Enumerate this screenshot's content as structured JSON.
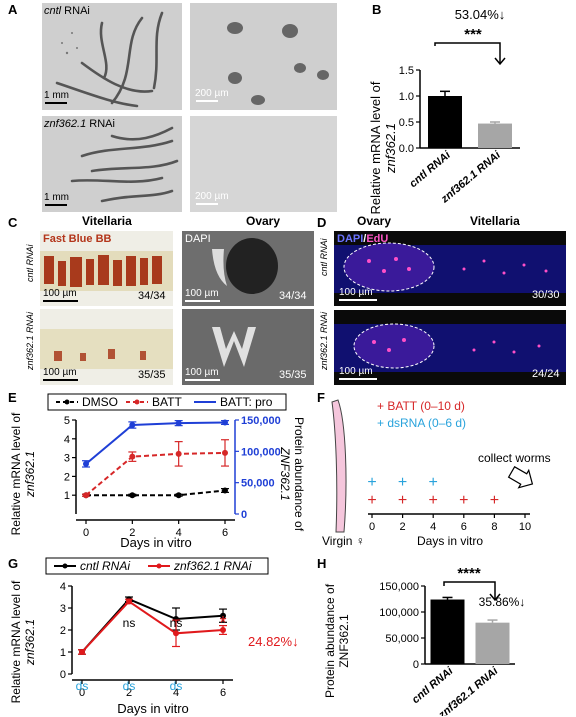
{
  "panels": {
    "A": {
      "label": "A",
      "row1_label": "cntl",
      "row1_suffix": " RNAi",
      "row2_label": "znf362.1",
      "row2_suffix": " RNAi",
      "scale_left": "1 mm",
      "scale_right": "200 µm"
    },
    "B": {
      "label": "B",
      "annotation": "53.04%↓",
      "stars": "***",
      "ylabel_line1": "Relative mRNA level of",
      "ylabel_line2": "znf362.1",
      "chart_data": {
        "type": "bar",
        "categories": [
          "cntl RNAi",
          "znf362.1 RNAi"
        ],
        "values": [
          1.0,
          0.47
        ],
        "errors": [
          0.09,
          0.03
        ],
        "colors": [
          "#000000",
          "#a6a6a6"
        ],
        "ylim": [
          0,
          1.5
        ],
        "yticks": [
          "0.0",
          "0.5",
          "1.0",
          "1.5"
        ]
      }
    },
    "C": {
      "label": "C",
      "col1": "Vitellaria",
      "col2": "Ovary",
      "stain1": "Fast Blue BB",
      "stain2": "DAPI",
      "row1": "cntl RNAi",
      "row2": "znf362.1 RNAi",
      "scale": "100 µm",
      "count_r1_c1": "34/34",
      "count_r1_c2": "34/34",
      "count_r2_c1": "35/35",
      "count_r2_c2": "35/35"
    },
    "D": {
      "label": "D",
      "col1": "Ovary",
      "col2": "Vitellaria",
      "stain_dapi": "DAPI",
      "stain_sep": "/",
      "stain_edu": "EdU",
      "row1": "cntl RNAi",
      "row2": "znf362.1 RNAi",
      "scale": "100 µm",
      "count_r1": "30/30",
      "count_r2": "24/24"
    },
    "E": {
      "label": "E",
      "legend": [
        "DMSO",
        "BATT",
        "BATT: pro"
      ],
      "xlabel": "Days in vitro",
      "ylabel_line1": "Relative mRNA level of",
      "ylabel_line2": "znf362.1",
      "y2label_line1": "Protein abundance of",
      "y2label_line2": "ZNF362.1",
      "chart_data": {
        "type": "line",
        "x": [
          0,
          2,
          4,
          6
        ],
        "xlim": [
          0,
          6
        ],
        "ylim": [
          0,
          5
        ],
        "y2lim": [
          0,
          150000
        ],
        "yticks": [
          "1",
          "2",
          "3",
          "4",
          "5"
        ],
        "y2ticks": [
          "0",
          "50,000",
          "100,000",
          "150,000"
        ],
        "series": [
          {
            "name": "DMSO",
            "axis": "left",
            "values": [
              1.0,
              1.0,
              1.0,
              1.25
            ],
            "errors": [
              0.05,
              0.05,
              0.05,
              0.1
            ],
            "color": "#000000",
            "dash": true
          },
          {
            "name": "BATT",
            "axis": "left",
            "values": [
              1.0,
              3.05,
              3.2,
              3.25
            ],
            "errors": [
              0.05,
              0.25,
              0.65,
              0.7
            ],
            "color": "#d62728",
            "dash": true
          },
          {
            "name": "BATT: pro",
            "axis": "right",
            "values": [
              80000,
              142000,
              145000,
              146000
            ],
            "errors": [
              5000,
              5000,
              4000,
              3000
            ],
            "color": "#1f3fd6",
            "dash": false
          }
        ]
      }
    },
    "F": {
      "label": "F",
      "batt": "+ BATT (0–10 d)",
      "dsrna": "+ dsRNA (0–6 d)",
      "collect": "collect worms",
      "virgin": "Virgin ♀",
      "xlabel": "Days in vitro",
      "ticks": [
        "0",
        "2",
        "4",
        "6",
        "8",
        "10"
      ],
      "plus": "+",
      "blue_days": [
        0,
        2,
        4
      ],
      "red_days": [
        0,
        2,
        4,
        6,
        8
      ]
    },
    "G": {
      "label": "G",
      "legend": [
        "cntl RNAi",
        "znf362.1 RNAi"
      ],
      "xlabel": "Days in vitro",
      "ylabel_line1": "Relative mRNA level of",
      "ylabel_line2": "znf362.1",
      "ns1": "ns",
      "ns2": "ns",
      "star": "*",
      "percent": "24.82%↓",
      "ds": "ds",
      "chart_data": {
        "type": "line",
        "x": [
          0,
          2,
          4,
          6
        ],
        "xlim": [
          0,
          6
        ],
        "ylim": [
          0,
          4
        ],
        "yticks": [
          "0",
          "1",
          "2",
          "3",
          "4"
        ],
        "series": [
          {
            "name": "cntl RNAi",
            "values": [
              1.0,
              3.4,
              2.5,
              2.65
            ],
            "errors": [
              0.1,
              0.1,
              0.5,
              0.3
            ],
            "color": "#000000"
          },
          {
            "name": "znf362.1 RNAi",
            "values": [
              1.0,
              3.3,
              1.85,
              2.0
            ],
            "errors": [
              0.1,
              0.1,
              0.6,
              0.2
            ],
            "color": "#e0191c"
          }
        ]
      }
    },
    "H": {
      "label": "H",
      "stars": "****",
      "percent": "35.86%↓",
      "ylabel_line1": "Protein abundance of",
      "ylabel_line2": "ZNF362.1",
      "chart_data": {
        "type": "bar",
        "categories": [
          "cntl RNAi",
          "znf362.1 RNAi"
        ],
        "values": [
          124000,
          79500
        ],
        "errors": [
          4000,
          5000
        ],
        "colors": [
          "#000000",
          "#a6a6a6"
        ],
        "ylim": [
          0,
          150000
        ],
        "yticks": [
          "0",
          "50,000",
          "100,000",
          "150,000"
        ]
      }
    }
  }
}
